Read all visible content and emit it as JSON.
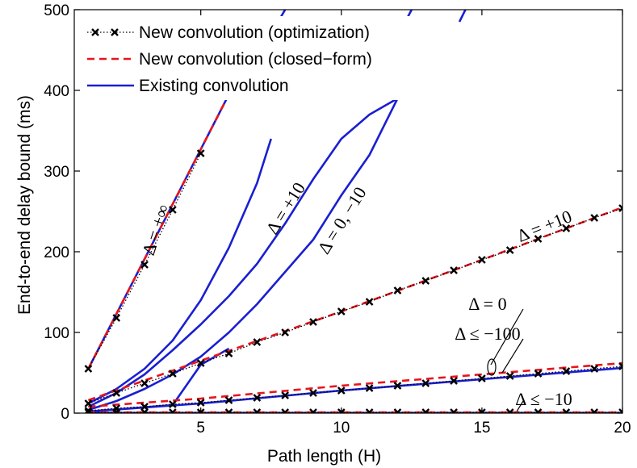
{
  "chart_data": {
    "type": "line",
    "xlabel": "Path length (H)",
    "ylabel": "End-to-end delay bound (ms)",
    "xlim": [
      0.5,
      20
    ],
    "ylim": [
      0,
      500
    ],
    "xticks": [
      5,
      10,
      15,
      20
    ],
    "yticks": [
      0,
      100,
      200,
      300,
      400,
      500
    ],
    "grid": false,
    "legend": {
      "placement": "top-left",
      "entries": [
        {
          "label": "New convolution (optimization)",
          "style": "dotted-x",
          "color": "#000000"
        },
        {
          "label": "New convolution (closed−form)",
          "style": "dashed",
          "color": "#e8141d"
        },
        {
          "label": "Existing convolution",
          "style": "solid",
          "color": "#1a1fd1"
        }
      ]
    },
    "series": [
      {
        "style": "dotted-x",
        "color": "#000000",
        "x": [
          1,
          2,
          3,
          4,
          5
        ],
        "y": [
          55,
          118,
          184,
          252,
          322
        ]
      },
      {
        "style": "dashed",
        "color": "#e8141d",
        "x": [
          1,
          6
        ],
        "y": [
          55,
          395
        ]
      },
      {
        "style": "solid",
        "color": "#1a1fd1",
        "x": [
          1,
          6
        ],
        "y": [
          55,
          395
        ]
      },
      {
        "style": "dotted-x",
        "color": "#000000",
        "x": [
          1,
          2,
          3,
          4,
          5,
          6,
          7,
          8,
          9,
          10,
          11,
          12,
          13,
          14,
          15,
          16,
          17,
          18,
          19,
          20
        ],
        "y": [
          12,
          25,
          37,
          49,
          62,
          74,
          88,
          100,
          113,
          126,
          138,
          152,
          164,
          177,
          190,
          202,
          216,
          229,
          242,
          254
        ]
      },
      {
        "style": "dashed",
        "color": "#e8141d",
        "x": [
          1,
          5,
          10,
          15,
          20
        ],
        "y": [
          16,
          65,
          126,
          190,
          255
        ]
      },
      {
        "style": "dotted-x",
        "color": "#000000",
        "x": [
          1,
          2,
          3,
          4,
          5,
          6,
          7,
          8,
          9,
          10,
          11,
          12,
          13,
          14,
          15,
          16,
          17,
          18,
          19,
          20
        ],
        "y": [
          3,
          6,
          8,
          11,
          13,
          16,
          19,
          22,
          25,
          28,
          31,
          34,
          37,
          40,
          43,
          46,
          49,
          52,
          55,
          58
        ]
      },
      {
        "style": "dashed",
        "color": "#e8141d",
        "x": [
          1,
          5,
          10,
          15,
          20
        ],
        "y": [
          8,
          18,
          34,
          48,
          62
        ]
      },
      {
        "style": "dotted-x",
        "color": "#000000",
        "x": [
          1,
          2,
          3,
          4,
          5,
          6,
          7,
          8,
          9,
          10,
          11,
          12,
          13,
          14,
          15,
          16,
          17,
          18,
          19,
          20
        ],
        "y": [
          1,
          1,
          1,
          1,
          1,
          1,
          1,
          1,
          1,
          1,
          1,
          1,
          1,
          1,
          1,
          1,
          1,
          1,
          1,
          1
        ]
      },
      {
        "style": "dashed",
        "color": "#e8141d",
        "x": [
          1,
          20
        ],
        "y": [
          1,
          1
        ]
      },
      {
        "style": "solid",
        "color": "#1a1fd1",
        "x": [
          1,
          2,
          3,
          4,
          5,
          6,
          7,
          7.5
        ],
        "y": [
          12,
          30,
          55,
          90,
          140,
          205,
          285,
          340
        ]
      },
      {
        "style": "solid",
        "color": "#1a1fd1",
        "x": [
          7.5,
          8.5
        ],
        "y": [
          470,
          530
        ]
      },
      {
        "style": "solid",
        "color": "#1a1fd1",
        "x": [
          1,
          2,
          3,
          4,
          5,
          6,
          7,
          8,
          9,
          10,
          11,
          12
        ],
        "y": [
          8,
          25,
          48,
          78,
          110,
          145,
          185,
          235,
          290,
          340,
          370,
          390
        ]
      },
      {
        "style": "solid",
        "color": "#1a1fd1",
        "x": [
          1,
          2,
          3,
          4,
          5,
          6,
          7,
          8,
          9,
          10,
          11,
          12
        ],
        "y": [
          4,
          15,
          30,
          48,
          70,
          100,
          135,
          175,
          215,
          270,
          320,
          390
        ]
      },
      {
        "style": "solid",
        "color": "#1a1fd1",
        "x": [
          12.2,
          12.8
        ],
        "y": [
          480,
          520
        ]
      },
      {
        "style": "solid",
        "color": "#1a1fd1",
        "x": [
          14.2,
          14.7
        ],
        "y": [
          485,
          520
        ]
      },
      {
        "style": "solid",
        "color": "#1a1fd1",
        "x": [
          1,
          4,
          4.3,
          5,
          6
        ],
        "y": [
          2,
          10,
          25,
          60,
          80
        ]
      },
      {
        "style": "solid",
        "color": "#1a1fd1",
        "x": [
          1,
          5,
          10,
          15,
          20
        ],
        "y": [
          2,
          12,
          28,
          42,
          56
        ]
      },
      {
        "style": "solid",
        "color": "#1a1fd1",
        "x": [
          1,
          20
        ],
        "y": [
          0.3,
          0.3
        ]
      }
    ],
    "annotations": [
      {
        "text": "Δ = +∞",
        "x": 3.6,
        "y": 225,
        "rotation": -72
      },
      {
        "text": "Δ = +10",
        "x": 8.2,
        "y": 250,
        "rotation": -58
      },
      {
        "text": "Δ = 0, −10",
        "x": 10.2,
        "y": 235,
        "rotation": -58
      },
      {
        "text": "Δ = +10",
        "x": 17.3,
        "y": 225,
        "rotation": -22
      },
      {
        "text": "Δ = 0",
        "x": 15.2,
        "y": 128,
        "rotation": 0
      },
      {
        "text": "Δ ≤ −100",
        "x": 15.2,
        "y": 91,
        "rotation": 0
      },
      {
        "text": "Δ ≤ −10",
        "x": 17.2,
        "y": 10,
        "rotation": 0
      }
    ]
  }
}
